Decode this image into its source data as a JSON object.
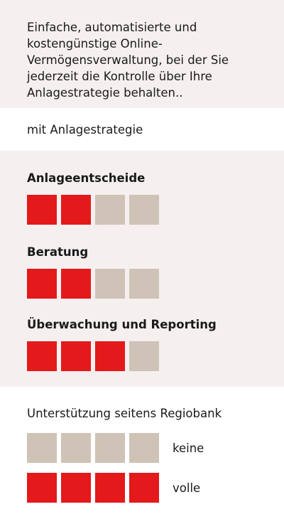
{
  "intro": {
    "text": "Einfache, automatisierte und kostengünstige Online-Vermögensverwaltung, bei der Sie jederzeit die Kontrolle über Ihre Anlagestrategie behalten.."
  },
  "subtitle": "mit Anlagestrategie",
  "criteria": [
    {
      "title": "Anlageentscheide",
      "level": 2,
      "max": 4
    },
    {
      "title": "Beratung",
      "level": 2,
      "max": 4
    },
    {
      "title": "Überwachung und Reporting",
      "level": 3,
      "max": 4
    }
  ],
  "legend": {
    "title": "Unterstützung seitens Regiobank",
    "none_label": "keine",
    "full_label": "volle"
  },
  "colors": {
    "accent": "#e3191b",
    "inactive": "#cfc2b6",
    "band": "#f5f0ef"
  }
}
